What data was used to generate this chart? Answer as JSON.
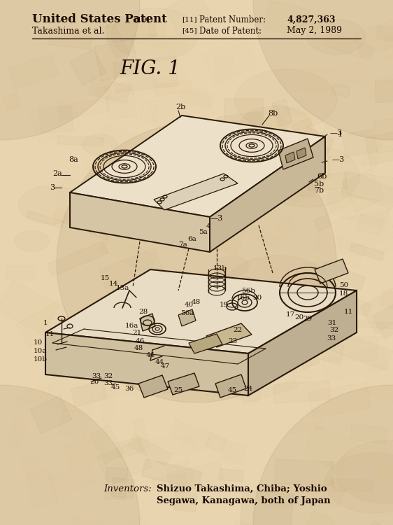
{
  "bg_color": "#e8d5b0",
  "line_color": "#2a1a0a",
  "text_color": "#1a0a00",
  "title_text": "FIG. 1",
  "header_left1": "United States Patent",
  "header_left1_super": "[19]",
  "header_left2": "Takashima et al.",
  "header_mid1": "[11]",
  "header_mid2": "[45]",
  "header_right1_label": "Patent Number:",
  "header_right2_label": "Date of Patent:",
  "header_right1_val": "4,827,363",
  "header_right2_val": "May 2, 1989",
  "inventors_label": "Inventors:",
  "inventors_text1": "Shizuo Takashima, Chiba; Yoshio",
  "inventors_text2": "Segawa, Kanagawa, both of Japan",
  "cassette_face_color": "#ede0c8",
  "cassette_side_color": "#d5c5a5",
  "cassette_front_color": "#c8b898",
  "deck_top_color": "#e8dcc5",
  "deck_side_color": "#cfc0a0",
  "deck_front_color": "#bfaf92"
}
